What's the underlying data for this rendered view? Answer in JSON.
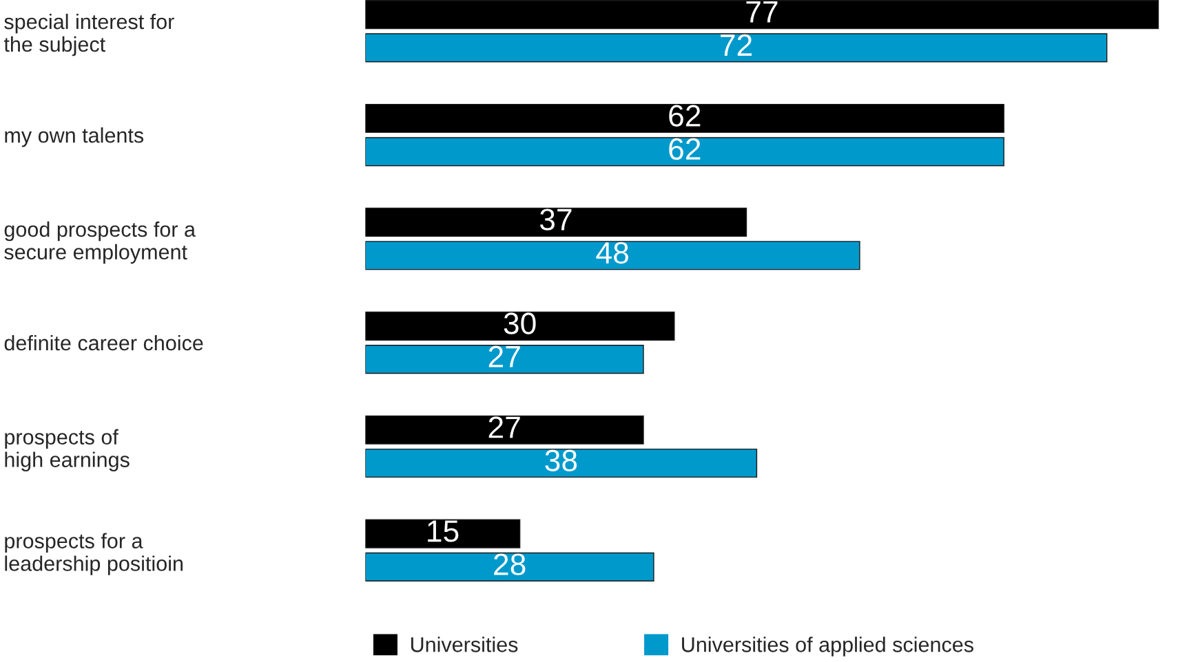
{
  "chart_data": {
    "type": "bar",
    "orientation": "horizontal",
    "categories": [
      "special interest for\nthe subject",
      "my own talents",
      "good prospects for a\nsecure employment",
      "definite career choice",
      "prospects of\nhigh earnings",
      "prospects for a\nleadership positioin"
    ],
    "series": [
      {
        "name": "Universities",
        "color": "#000000",
        "values": [
          77,
          62,
          37,
          30,
          27,
          15
        ]
      },
      {
        "name": "Universities of applied sciences",
        "color": "#0099cc",
        "values": [
          72,
          62,
          48,
          27,
          38,
          28
        ]
      }
    ],
    "data_labels": true,
    "legend": "bottom",
    "grid": false
  }
}
